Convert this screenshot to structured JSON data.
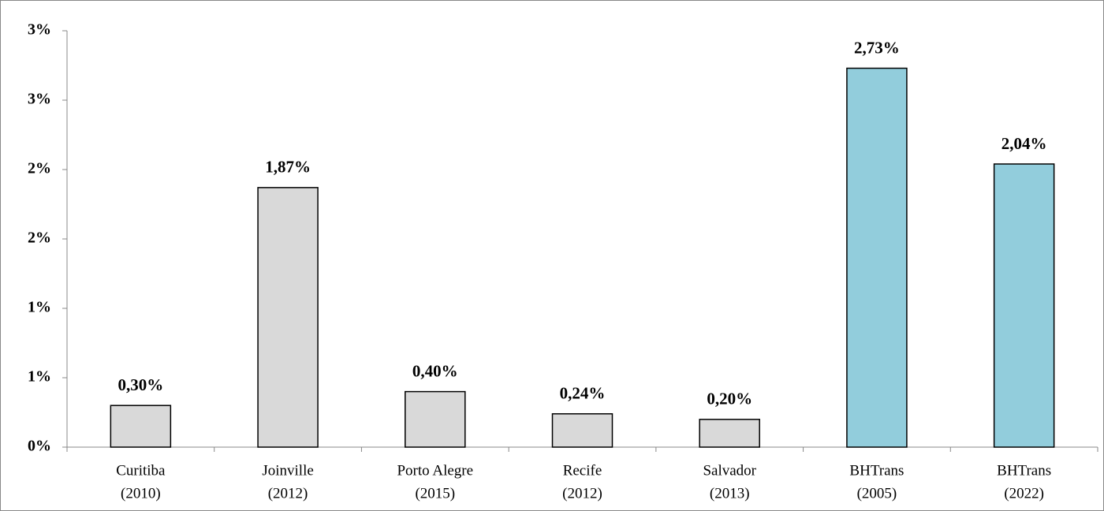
{
  "chart_data": {
    "type": "bar",
    "categories": [
      [
        "Curitiba",
        "(2010)"
      ],
      [
        "Joinville",
        "(2012)"
      ],
      [
        "Porto Alegre",
        "(2015)"
      ],
      [
        "Recife",
        "(2012)"
      ],
      [
        "Salvador",
        "(2013)"
      ],
      [
        "BHTrans",
        "(2005)"
      ],
      [
        "BHTrans",
        "(2022)"
      ]
    ],
    "values": [
      0.3,
      1.87,
      0.4,
      0.24,
      0.2,
      2.73,
      2.04
    ],
    "value_labels": [
      "0,30%",
      "1,87%",
      "0,40%",
      "0,24%",
      "0,20%",
      "2,73%",
      "2,04%"
    ],
    "colors": [
      "#d9d9d9",
      "#d9d9d9",
      "#d9d9d9",
      "#d9d9d9",
      "#d9d9d9",
      "#92cddc",
      "#92cddc"
    ],
    "ylim": [
      0,
      3
    ],
    "yticks": [
      {
        "value": 0,
        "label": "0%"
      },
      {
        "value": 0.5,
        "label": "1%"
      },
      {
        "value": 1,
        "label": "1%"
      },
      {
        "value": 1.5,
        "label": "2%"
      },
      {
        "value": 2,
        "label": "2%"
      },
      {
        "value": 2.5,
        "label": "3%"
      },
      {
        "value": 3,
        "label": "3%"
      }
    ],
    "grid": false
  }
}
